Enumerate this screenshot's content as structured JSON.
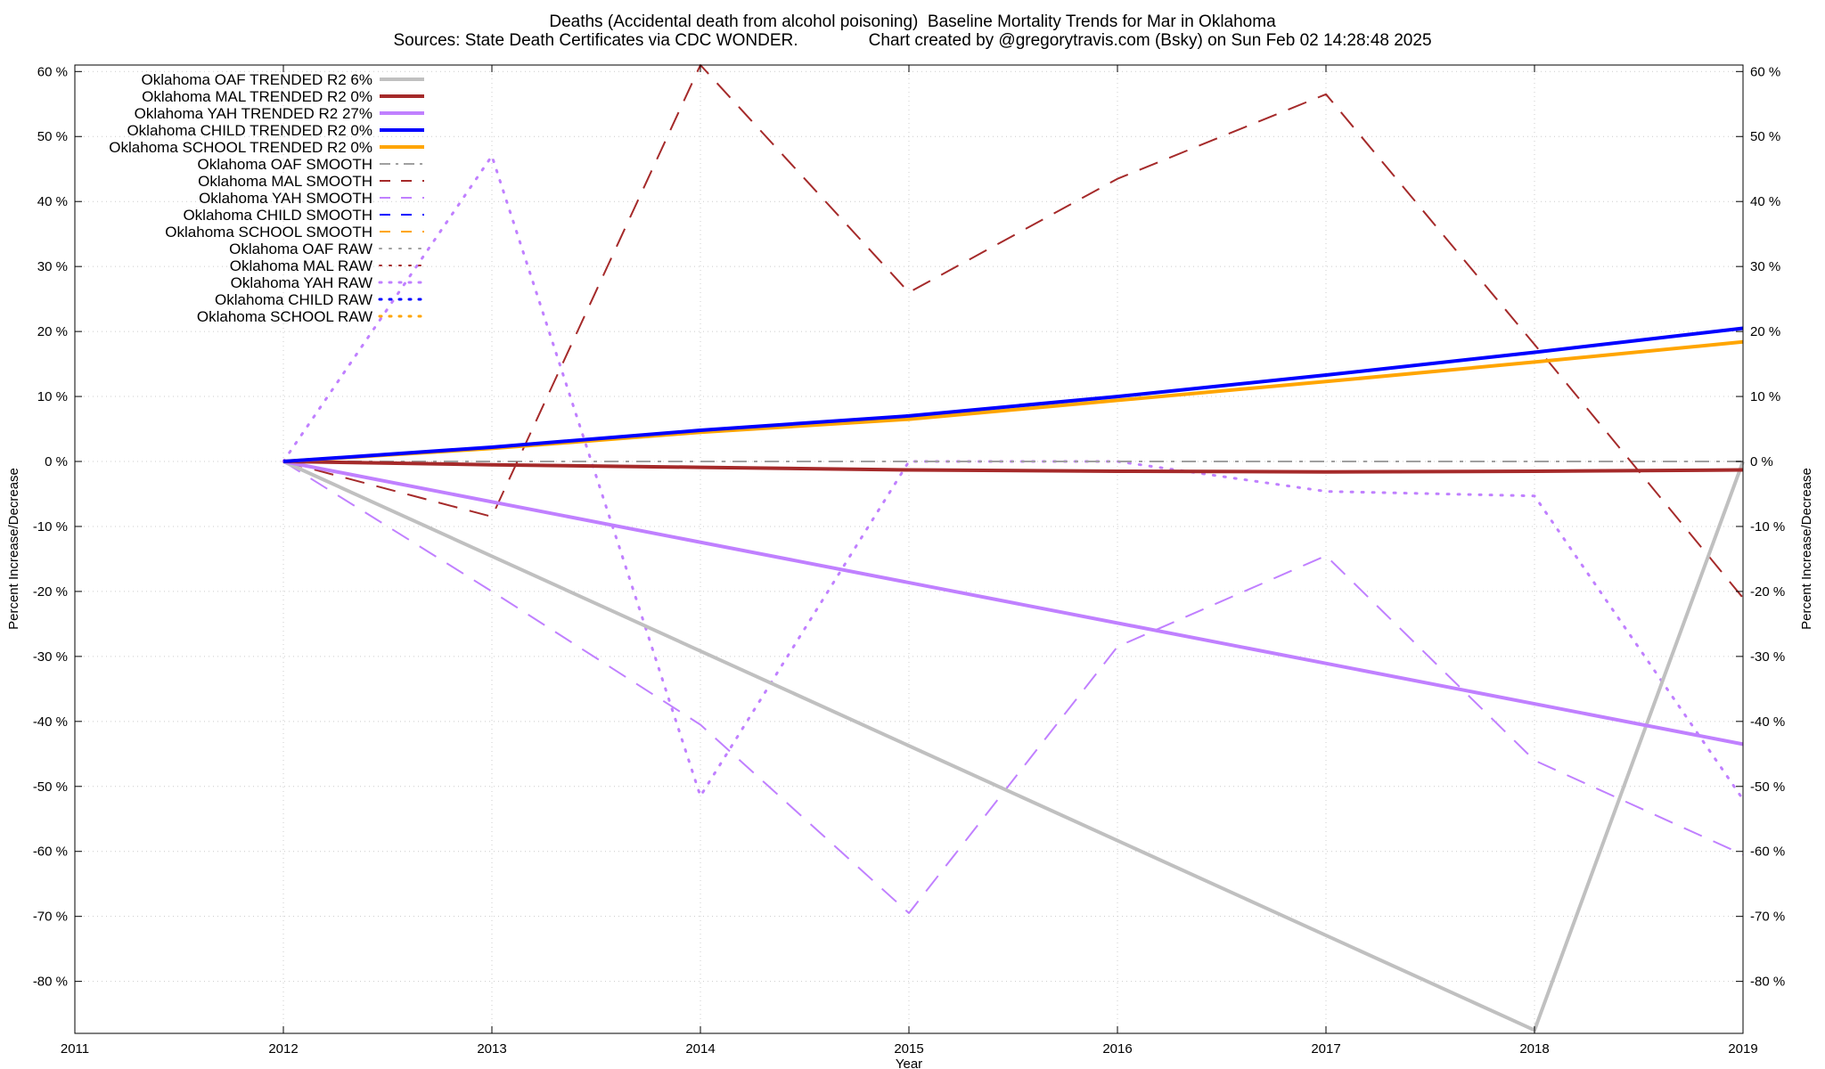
{
  "chart_data": {
    "type": "line",
    "title": "Deaths (Accidental death from alcohol poisoning)  Baseline Mortality Trends for Mar in Oklahoma",
    "subtitle": "Sources: State Death Certificates via CDC WONDER.               Chart created by @gregorytravis.com (Bsky) on Sun Feb 02 14:28:48 2025",
    "xlabel": "Year",
    "ylabel": "Percent Increase/Decrease",
    "y2label": "Percent Increase/Decrease",
    "xlim": [
      2011,
      2019
    ],
    "ylim": [
      -88,
      61
    ],
    "x_ticks": [
      "2011",
      "2012",
      "2013",
      "2014",
      "2015",
      "2016",
      "2017",
      "2018",
      "2019"
    ],
    "y_ticks": [
      {
        "value": 60,
        "label": "60 %"
      },
      {
        "value": 50,
        "label": "50 %"
      },
      {
        "value": 40,
        "label": "40 %"
      },
      {
        "value": 30,
        "label": "30 %"
      },
      {
        "value": 20,
        "label": "20 %"
      },
      {
        "value": 10,
        "label": "10 %"
      },
      {
        "value": 0,
        "label": "0 %"
      },
      {
        "value": -10,
        "label": "-10 %"
      },
      {
        "value": -20,
        "label": "-20 %"
      },
      {
        "value": -30,
        "label": "-30 %"
      },
      {
        "value": -40,
        "label": "-40 %"
      },
      {
        "value": -50,
        "label": "-50 %"
      },
      {
        "value": -60,
        "label": "-60 %"
      },
      {
        "value": -70,
        "label": "-70 %"
      },
      {
        "value": -80,
        "label": "-80 %"
      }
    ],
    "grid": true,
    "legend_position": "top-left",
    "series": [
      {
        "name": "Oklahoma OAF TRENDED R2  6%",
        "color": "#c0c0c0",
        "style": "solid",
        "width": 4,
        "x": [
          2012,
          2018,
          2019
        ],
        "y": [
          0,
          -87.5,
          0
        ]
      },
      {
        "name": "Oklahoma MAL TRENDED R2  0%",
        "color": "#a52a2a",
        "style": "solid",
        "width": 4,
        "x": [
          2012,
          2013,
          2014,
          2015,
          2016,
          2017,
          2018,
          2019
        ],
        "y": [
          0,
          -0.5,
          -0.9,
          -1.3,
          -1.5,
          -1.6,
          -1.5,
          -1.3
        ]
      },
      {
        "name": "Oklahoma YAH TRENDED R2  27%",
        "color": "#c080ff",
        "style": "solid",
        "width": 4,
        "x": [
          2012,
          2019
        ],
        "y": [
          0,
          -43.5
        ]
      },
      {
        "name": "Oklahoma CHILD TRENDED R2  0%",
        "color": "#0000ff",
        "style": "solid",
        "width": 4,
        "x": [
          2012,
          2013,
          2014,
          2015,
          2016,
          2017,
          2018,
          2019
        ],
        "y": [
          0,
          2.2,
          4.8,
          7.0,
          10.0,
          13.3,
          16.8,
          20.5
        ]
      },
      {
        "name": "Oklahoma SCHOOL TRENDED R2  0%",
        "color": "#ffa500",
        "style": "solid",
        "width": 4,
        "x": [
          2012,
          2013,
          2014,
          2015,
          2016,
          2017,
          2018,
          2019
        ],
        "y": [
          0,
          2.0,
          4.5,
          6.5,
          9.4,
          12.3,
          15.3,
          18.4
        ]
      },
      {
        "name": "Oklahoma OAF SMOOTH",
        "color": "#a0a0a0",
        "style": "dashdot",
        "width": 2,
        "x": [
          2012,
          2013,
          2014,
          2015,
          2016,
          2017,
          2018,
          2019
        ],
        "y": [
          0,
          0,
          0,
          0,
          0,
          0,
          0,
          0
        ]
      },
      {
        "name": "Oklahoma MAL SMOOTH",
        "color": "#a52a2a",
        "style": "dashed",
        "width": 2,
        "x": [
          2012,
          2013,
          2014,
          2015,
          2016,
          2017,
          2018,
          2019
        ],
        "y": [
          0,
          -8.5,
          61,
          26,
          43.5,
          56.5,
          18,
          -21
        ]
      },
      {
        "name": "Oklahoma YAH SMOOTH",
        "color": "#c080ff",
        "style": "dashed",
        "width": 2,
        "x": [
          2012,
          2013,
          2014,
          2015,
          2016,
          2017,
          2018,
          2019
        ],
        "y": [
          0,
          -20,
          -40.5,
          -69.5,
          -28.5,
          -14.5,
          -46,
          -60.5
        ]
      },
      {
        "name": "Oklahoma CHILD SMOOTH",
        "color": "#0000ff",
        "style": "dashed",
        "width": 2,
        "x": [],
        "y": []
      },
      {
        "name": "Oklahoma SCHOOL SMOOTH",
        "color": "#ffa500",
        "style": "dashed",
        "width": 2,
        "x": [],
        "y": []
      },
      {
        "name": "Oklahoma OAF RAW",
        "color": "#a0a0a0",
        "style": "dotted",
        "width": 2,
        "x": [],
        "y": []
      },
      {
        "name": "Oklahoma MAL RAW",
        "color": "#a52a2a",
        "style": "dotted",
        "width": 2,
        "x": [],
        "y": []
      },
      {
        "name": "Oklahoma YAH RAW",
        "color": "#c080ff",
        "style": "dotted",
        "width": 3,
        "x": [
          2012,
          2013,
          2014,
          2015,
          2016,
          2017,
          2018,
          2019
        ],
        "y": [
          0,
          47,
          -51.5,
          0,
          0,
          -4.6,
          -5.3,
          -52
        ]
      },
      {
        "name": "Oklahoma CHILD RAW",
        "color": "#0000ff",
        "style": "dotted",
        "width": 3,
        "x": [],
        "y": []
      },
      {
        "name": "Oklahoma SCHOOL RAW",
        "color": "#ffa500",
        "style": "dotted",
        "width": 3,
        "x": [],
        "y": []
      }
    ],
    "draw_order": [
      12,
      5,
      6,
      7,
      0,
      2,
      1,
      4,
      3
    ]
  }
}
